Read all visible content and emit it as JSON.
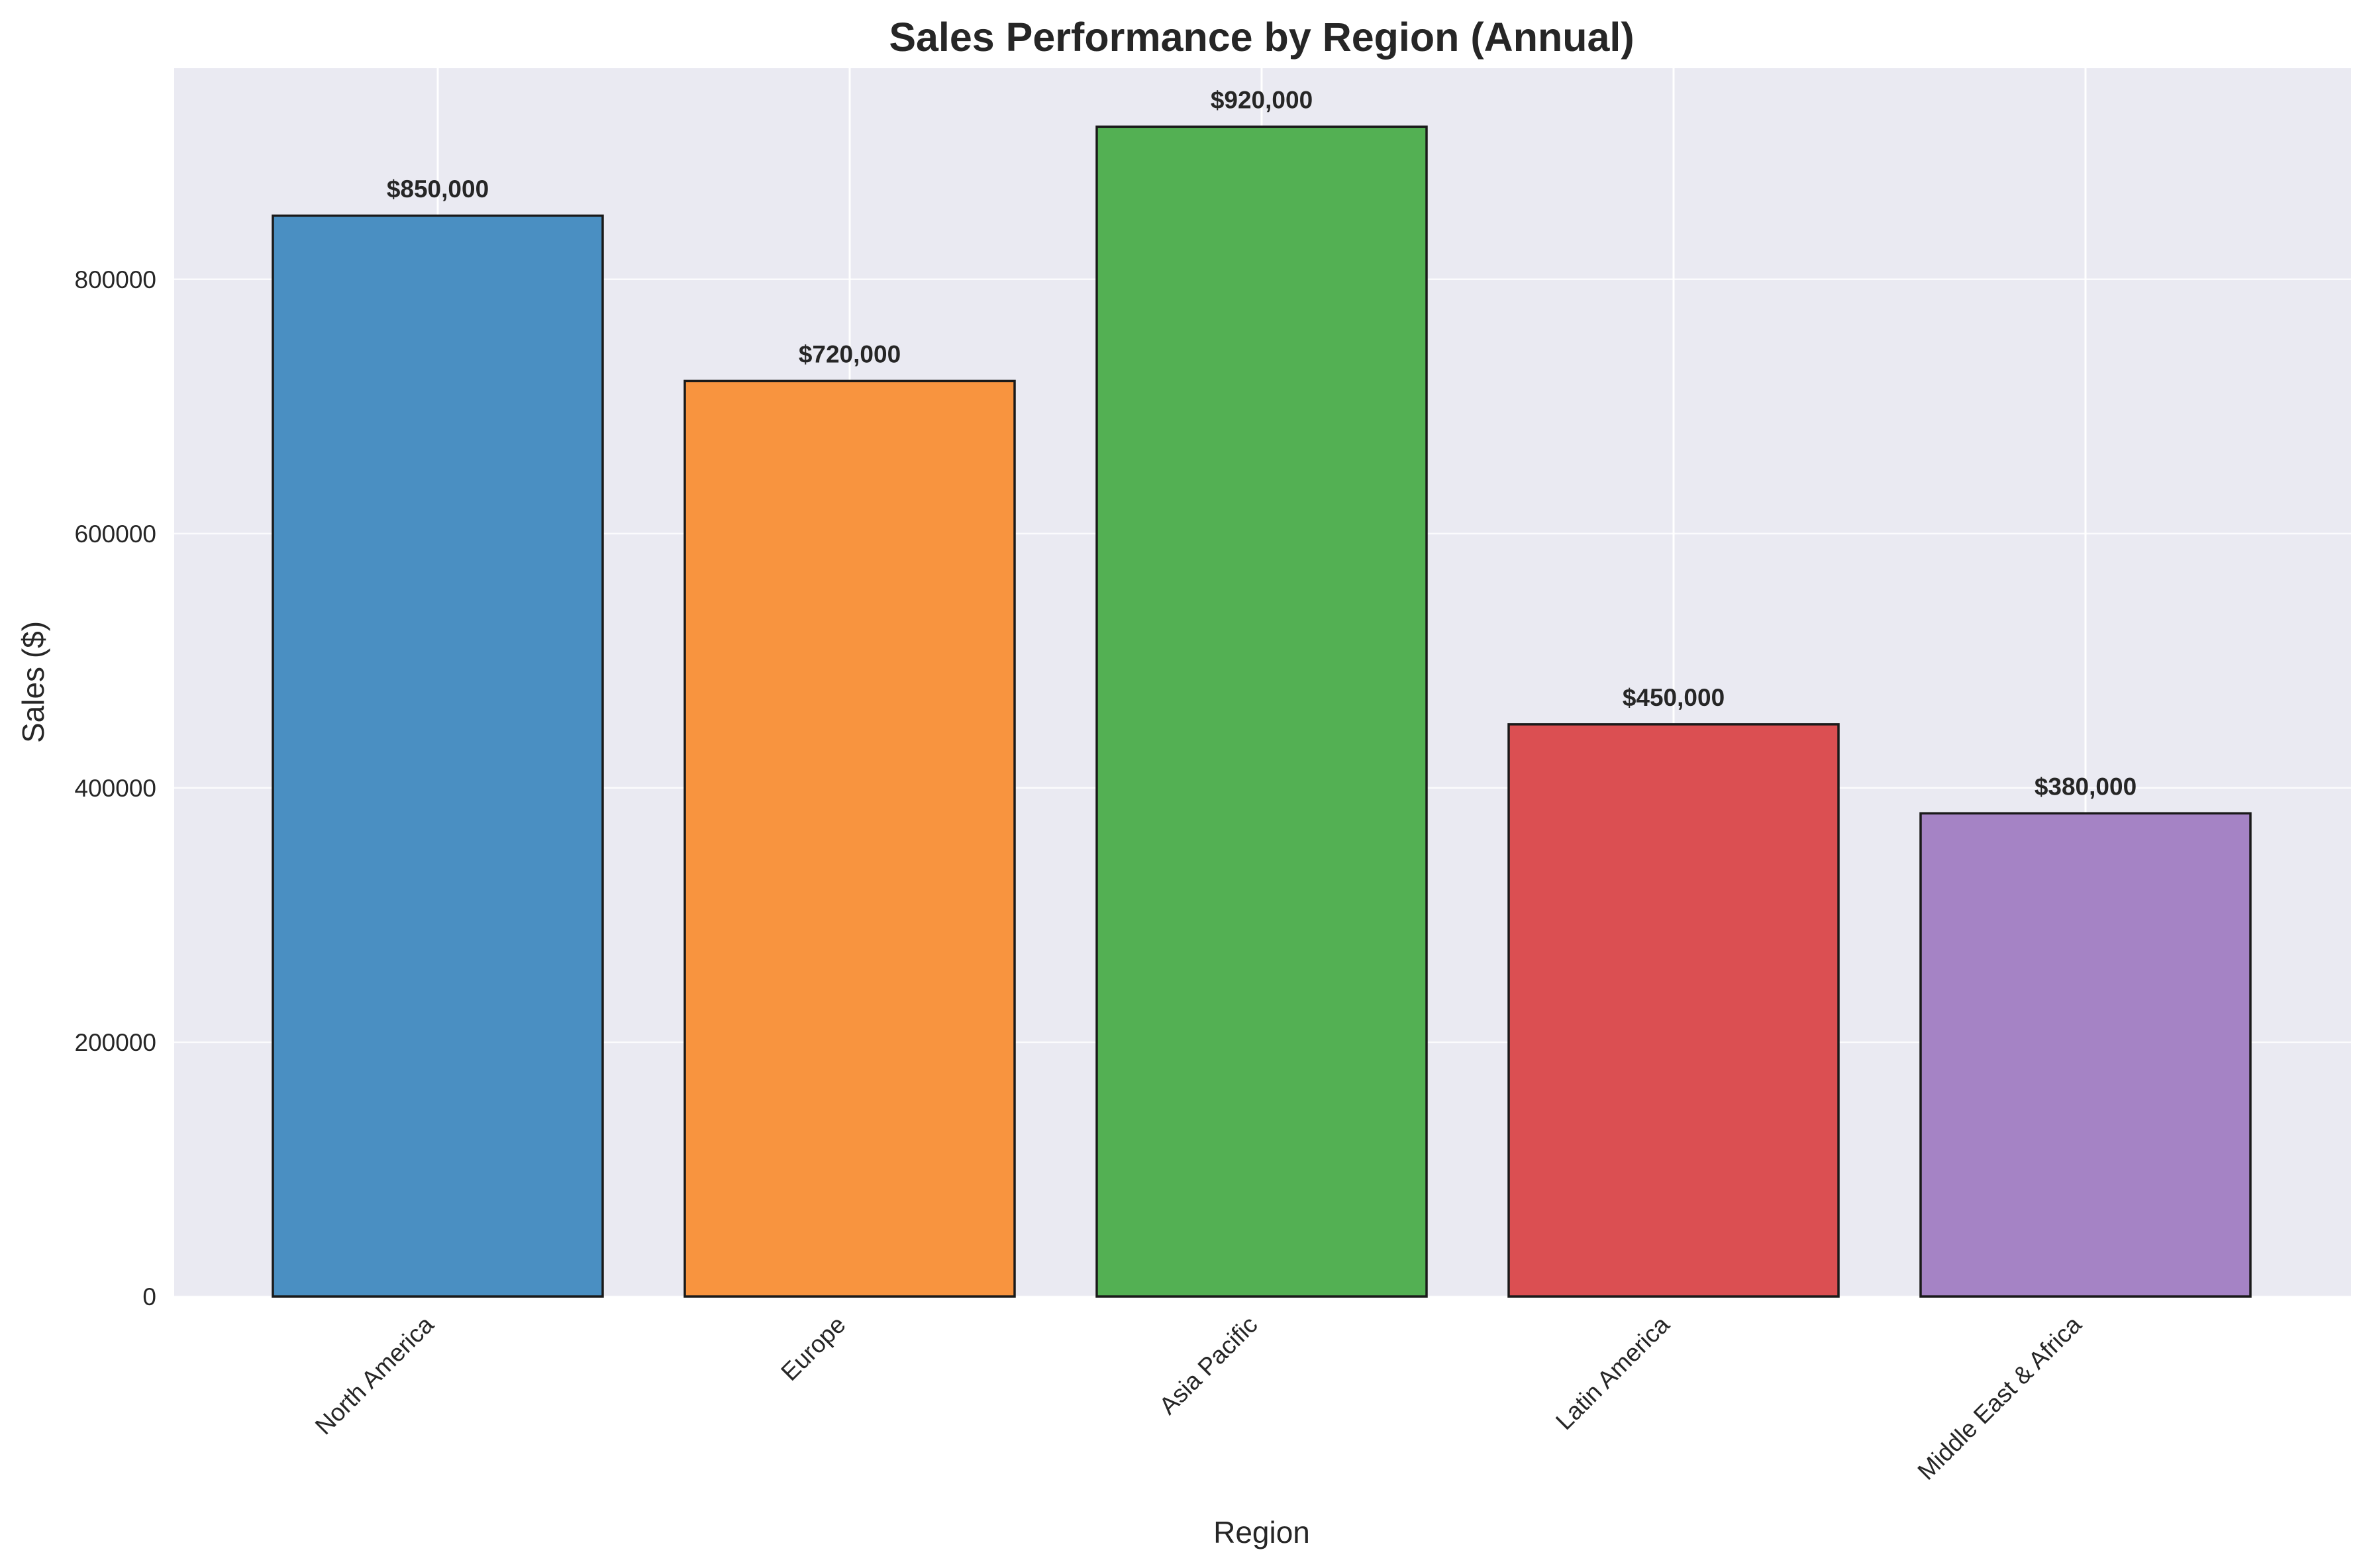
{
  "chart_data": {
    "type": "bar",
    "title": "Sales Performance by Region (Annual)",
    "xlabel": "Region",
    "ylabel": "Sales ($)",
    "categories": [
      "North America",
      "Europe",
      "Asia Pacific",
      "Latin America",
      "Middle East & Africa"
    ],
    "values": [
      850000,
      720000,
      920000,
      450000,
      380000
    ],
    "value_labels": [
      "$850,000",
      "$720,000",
      "$920,000",
      "$450,000",
      "$380,000"
    ],
    "colors": [
      "#4a8fc2",
      "#f8943f",
      "#53b053",
      "#db4f52",
      "#a583c5"
    ],
    "edge_color": "#1a1a1a",
    "ylim": [
      0,
      966000
    ],
    "yticks": [
      0,
      200000,
      400000,
      600000,
      800000
    ],
    "ytick_labels": [
      "0",
      "200000",
      "400000",
      "600000",
      "800000"
    ],
    "grid": true,
    "background": "#eaeaf2",
    "legend": "none"
  }
}
